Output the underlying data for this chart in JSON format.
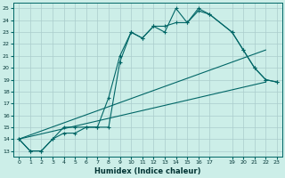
{
  "xlabel": "Humidex (Indice chaleur)",
  "bg_color": "#cceee8",
  "grid_color": "#aacccc",
  "line_color": "#006666",
  "xlim": [
    -0.5,
    23.5
  ],
  "ylim": [
    12.5,
    25.5
  ],
  "xticks": [
    0,
    1,
    2,
    3,
    4,
    5,
    6,
    7,
    8,
    9,
    10,
    11,
    12,
    13,
    14,
    15,
    16,
    17,
    19,
    20,
    21,
    22,
    23
  ],
  "yticks": [
    13,
    14,
    15,
    16,
    17,
    18,
    19,
    20,
    21,
    22,
    23,
    24,
    25
  ],
  "line1_x": [
    0,
    1,
    2,
    3,
    4,
    5,
    6,
    7,
    8,
    9,
    10,
    11,
    12,
    13,
    14,
    15,
    16,
    17,
    19,
    20,
    21,
    22,
    23
  ],
  "line1_y": [
    14,
    13,
    13,
    14,
    15,
    15,
    15,
    15.0,
    15.0,
    20.5,
    23.0,
    22.5,
    23.5,
    23.0,
    25.0,
    23.8,
    25.0,
    24.5,
    23.0,
    21.5,
    20.0,
    19.0,
    18.8
  ],
  "line2_x": [
    0,
    1,
    2,
    3,
    4,
    5,
    6,
    7,
    8,
    9,
    10,
    11,
    12,
    13,
    14,
    15,
    16,
    17,
    19,
    20,
    21,
    22,
    23
  ],
  "line2_y": [
    14,
    13,
    13,
    14,
    14.5,
    14.5,
    15,
    15.0,
    17.5,
    21.0,
    23.0,
    22.5,
    23.5,
    23.5,
    23.8,
    23.8,
    24.8,
    24.5,
    23.0,
    21.5,
    20.0,
    19.0,
    18.8
  ],
  "line3_x": [
    0,
    22
  ],
  "line3_y": [
    14,
    18.8
  ],
  "line4_x": [
    0,
    22
  ],
  "line4_y": [
    14,
    21.5
  ]
}
